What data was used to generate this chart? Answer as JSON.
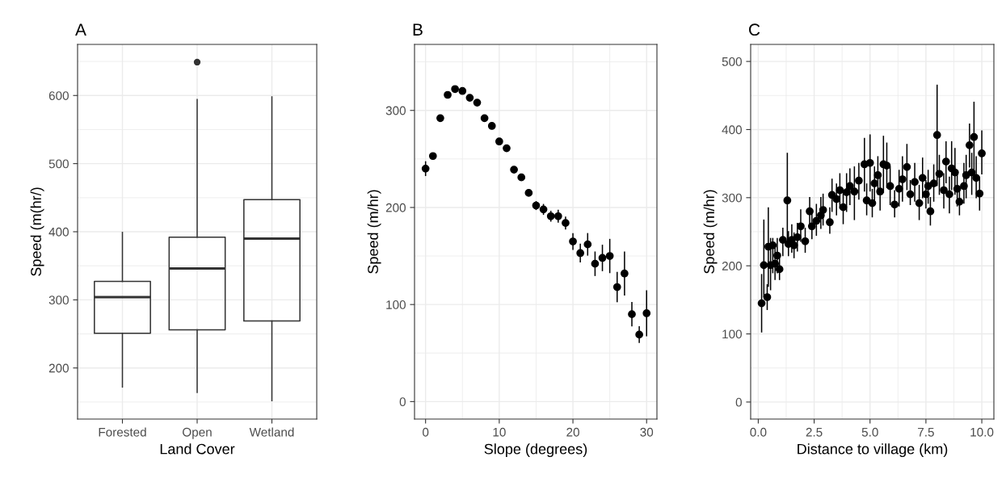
{
  "chart_data": [
    {
      "type": "box",
      "title": "A",
      "xlabel": "Land Cover",
      "ylabel": "Speed (m(hr/)",
      "categories": [
        "Forested",
        "Open",
        "Wetland"
      ],
      "color": "#333333",
      "grid": true,
      "ylim": [
        125,
        675
      ],
      "yticks": [
        200,
        300,
        400,
        500,
        600
      ],
      "boxes": [
        {
          "low": 172,
          "q1": 251,
          "median": 304,
          "q3": 327,
          "high": 399
        },
        {
          "low": 164,
          "q1": 256,
          "median": 346,
          "q3": 392,
          "high": 594,
          "outliers": [
            649
          ]
        },
        {
          "low": 152,
          "q1": 269,
          "median": 390,
          "q3": 447,
          "high": 598
        }
      ]
    },
    {
      "type": "scatter",
      "title": "B",
      "xlabel": "Slope (degrees)",
      "ylabel": "Speed (m/hr)",
      "marker": "circle",
      "grid": true,
      "xlim": [
        -1.5,
        31.4
      ],
      "xticks": [
        0,
        10,
        20,
        30
      ],
      "ylim": [
        -18,
        368
      ],
      "yticks": [
        0,
        100,
        200,
        300
      ],
      "series": [
        {
          "color": "#000000",
          "x": [
            0,
            1,
            2,
            3,
            4,
            5,
            6,
            7,
            8,
            9,
            10,
            11,
            12,
            13,
            14,
            15,
            16,
            17,
            18,
            19,
            20,
            21,
            22,
            23,
            24,
            25,
            26,
            27,
            28,
            29,
            30
          ],
          "values": [
            240,
            253,
            292,
            316,
            322,
            320,
            313,
            308,
            292,
            284,
            268,
            261,
            239,
            231,
            215,
            202,
            198,
            191,
            191,
            184,
            165,
            153,
            162,
            142,
            148,
            150,
            118,
            132,
            90,
            69,
            91
          ],
          "errors": [
            7,
            null,
            null,
            null,
            null,
            null,
            null,
            null,
            null,
            null,
            null,
            null,
            null,
            null,
            null,
            4,
            5,
            5,
            6,
            6,
            8,
            9,
            11,
            12,
            13,
            17,
            15,
            22,
            12,
            8,
            23
          ]
        }
      ]
    },
    {
      "type": "scatter",
      "title": "C",
      "xlabel": "Distance to village (km)",
      "ylabel": "Speed (m/hr)",
      "marker": "circle",
      "grid": true,
      "xlim": [
        -0.34,
        10.54
      ],
      "xticks": [
        {
          "value": 0,
          "label": "0.0"
        },
        2.5,
        {
          "value": 5,
          "label": "5.0"
        },
        7.5,
        {
          "value": 10,
          "label": "10.0"
        }
      ],
      "ylim": [
        -25,
        525
      ],
      "yticks": [
        0,
        100,
        200,
        300,
        400,
        500
      ],
      "series": [
        {
          "color": "#000000",
          "x": [
            0.15,
            0.25,
            0.4,
            0.45,
            0.55,
            0.65,
            0.75,
            0.85,
            0.95,
            1.1,
            1.3,
            1.35,
            1.5,
            1.6,
            1.75,
            1.9,
            2.1,
            2.3,
            2.4,
            2.6,
            2.8,
            2.9,
            3.2,
            3.3,
            3.5,
            3.65,
            3.8,
            3.95,
            4.1,
            4.3,
            4.5,
            4.75,
            4.85,
            5.0,
            5.1,
            5.2,
            5.35,
            5.45,
            5.6,
            5.75,
            5.9,
            6.1,
            6.3,
            6.45,
            6.65,
            6.8,
            7.0,
            7.2,
            7.35,
            7.5,
            7.6,
            7.7,
            7.85,
            8.0,
            8.1,
            8.3,
            8.4,
            8.55,
            8.65,
            8.8,
            8.9,
            9.0,
            9.2,
            9.3,
            9.45,
            9.55,
            9.65,
            9.75,
            9.9,
            10.0
          ],
          "values": [
            145,
            201,
            154,
            228,
            201,
            230,
            203,
            215,
            195,
            238,
            296,
            232,
            238,
            230,
            242,
            258,
            236,
            280,
            258,
            266,
            274,
            282,
            264,
            304,
            298,
            311,
            286,
            308,
            317,
            309,
            325,
            349,
            296,
            351,
            292,
            321,
            333,
            309,
            349,
            347,
            317,
            290,
            313,
            327,
            345,
            305,
            323,
            292,
            329,
            305,
            317,
            280,
            321,
            392,
            335,
            311,
            353,
            305,
            343,
            337,
            313,
            294,
            317,
            333,
            377,
            337,
            389,
            329,
            306,
            365
          ],
          "errors": [
            [
              103,
              187
            ],
            [
              155,
              267
            ],
            [
              136,
              172
            ],
            [
              170,
              285
            ],
            [
              165,
              240
            ],
            [
              190,
              240
            ],
            [
              180,
              230
            ],
            [
              190,
              240
            ],
            [
              180,
              210
            ],
            [
              215,
              255
            ],
            [
              228,
              365
            ],
            [
              215,
              250
            ],
            [
              220,
              260
            ],
            [
              212,
              248
            ],
            [
              222,
              262
            ],
            [
              236,
              282
            ],
            [
              220,
              255
            ],
            [
              255,
              300
            ],
            [
              240,
              280
            ],
            [
              245,
              290
            ],
            [
              255,
              300
            ],
            [
              260,
              305
            ],
            [
              248,
              285
            ],
            [
              280,
              327
            ],
            [
              275,
              320
            ],
            [
              285,
              335
            ],
            [
              262,
              310
            ],
            [
              280,
              335
            ],
            [
              290,
              342
            ],
            [
              268,
              345
            ],
            [
              298,
              350
            ],
            [
              310,
              387
            ],
            [
              275,
              320
            ],
            [
              310,
              392
            ],
            [
              272,
              312
            ],
            [
              295,
              345
            ],
            [
              305,
              360
            ],
            [
              282,
              335
            ],
            [
              308,
              390
            ],
            [
              315,
              380
            ],
            [
              290,
              345
            ],
            [
              272,
              310
            ],
            [
              288,
              340
            ],
            [
              295,
              360
            ],
            [
              312,
              378
            ],
            [
              290,
              325
            ],
            [
              295,
              350
            ],
            [
              268,
              318
            ],
            [
              300,
              358
            ],
            [
              285,
              325
            ],
            [
              292,
              340
            ],
            [
              260,
              300
            ],
            [
              295,
              348
            ],
            [
              318,
              465
            ],
            [
              305,
              362
            ],
            [
              285,
              335
            ],
            [
              322,
              382
            ],
            [
              278,
              330
            ],
            [
              312,
              382
            ],
            [
              305,
              372
            ],
            [
              288,
              340
            ],
            [
              275,
              313
            ],
            [
              292,
              350
            ],
            [
              300,
              362
            ],
            [
              345,
              408
            ],
            [
              305,
              365
            ],
            [
              340,
              440
            ],
            [
              300,
              360
            ],
            [
              282,
              330
            ],
            [
              335,
              398
            ]
          ]
        }
      ]
    }
  ]
}
